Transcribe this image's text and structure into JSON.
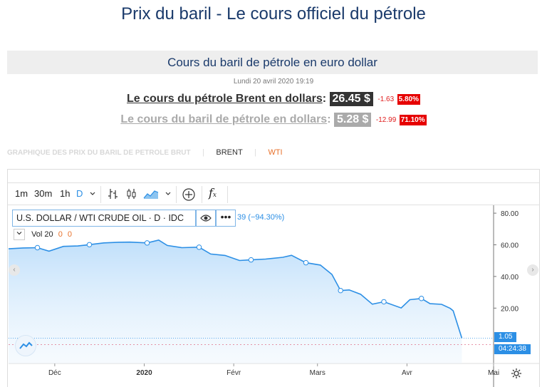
{
  "page": {
    "title": "Prix du baril - Le cours officiel du pétrole",
    "subheader": "Cours du baril de pétrole en euro dollar",
    "date": "Lundi 20 avril 2020 19:19"
  },
  "prices": [
    {
      "label": "Le cours du pétrole Brent en dollars",
      "value": "26.45 $",
      "change": "-1.63",
      "pct": "5.80%"
    },
    {
      "label": "Le cours du baril de pétrole en dollars",
      "value": "5.28 $",
      "change": "-12.99",
      "pct": "71.10%"
    }
  ],
  "tabs": {
    "faint": "GRAPHIQUE DES PRIX DU BARIL DE PETROLE BRUT",
    "brent": "BRENT",
    "wti": "WTI"
  },
  "toolbar": {
    "interval_1m": "1m",
    "interval_30m": "30m",
    "interval_1h": "1h",
    "interval_d": "D"
  },
  "legend": {
    "symbol": "U.S. DOLLAR / WTI CRUDE OIL · D · IDC",
    "change": "39 (−94.30%)",
    "vol_label": "Vol 20",
    "vol_v1": "0",
    "vol_v2": "0"
  },
  "last_price_label": "1.05",
  "countdown_label": "04:24:38",
  "colors": {
    "title": "#1a3a6b",
    "line": "#2c8fe5",
    "down": "#e60000",
    "wti": "#e8722c"
  },
  "icons": [
    "chevron-down-icon",
    "bar-chart-icon",
    "candle-icon",
    "area-chart-icon",
    "add-indicator-icon",
    "formula-icon",
    "eye-icon",
    "more-icon",
    "tradingview-logo-icon",
    "gear-icon",
    "chevron-left-icon",
    "chevron-right-icon"
  ],
  "chart_data": {
    "type": "area",
    "x": [
      "2019-11-15",
      "2019-11-20",
      "2019-11-25",
      "2019-11-29",
      "2019-12-04",
      "2019-12-09",
      "2019-12-13",
      "2019-12-18",
      "2019-12-23",
      "2019-12-27",
      "2020-01-02",
      "2020-01-06",
      "2020-01-09",
      "2020-01-14",
      "2020-01-20",
      "2020-01-24",
      "2020-01-29",
      "2020-02-03",
      "2020-02-07",
      "2020-02-12",
      "2020-02-18",
      "2020-02-21",
      "2020-02-26",
      "2020-03-02",
      "2020-03-06",
      "2020-03-09",
      "2020-03-12",
      "2020-03-16",
      "2020-03-20",
      "2020-03-24",
      "2020-03-30",
      "2020-04-02",
      "2020-04-06",
      "2020-04-09",
      "2020-04-13",
      "2020-04-16",
      "2020-04-17",
      "2020-04-20"
    ],
    "values": [
      57.5,
      58.0,
      58.2,
      56.0,
      59.0,
      59.3,
      60.1,
      61.2,
      61.6,
      61.7,
      61.2,
      63.0,
      59.6,
      58.2,
      58.5,
      54.2,
      53.3,
      50.1,
      50.5,
      51.0,
      52.1,
      53.4,
      48.7,
      47.2,
      41.3,
      31.1,
      31.5,
      28.7,
      22.5,
      24.0,
      20.1,
      25.3,
      26.1,
      22.8,
      22.4,
      19.8,
      18.3,
      1.05
    ],
    "y_axis": {
      "range": [
        -15,
        85
      ],
      "ticks": [
        "80.00",
        "60.00",
        "40.00",
        "20.00"
      ],
      "tick_values": [
        80,
        60,
        40,
        20
      ]
    },
    "x_axis": {
      "ticks": [
        "Déc",
        "2020",
        "Févr",
        "Mars",
        "Avr",
        "Mai"
      ],
      "tick_dates": [
        "2019-12-01",
        "2020-01-01",
        "2020-02-01",
        "2020-03-01",
        "2020-04-01",
        "2020-05-01"
      ],
      "range": [
        "2019-11-15",
        "2020-05-01"
      ]
    },
    "grid": false
  }
}
